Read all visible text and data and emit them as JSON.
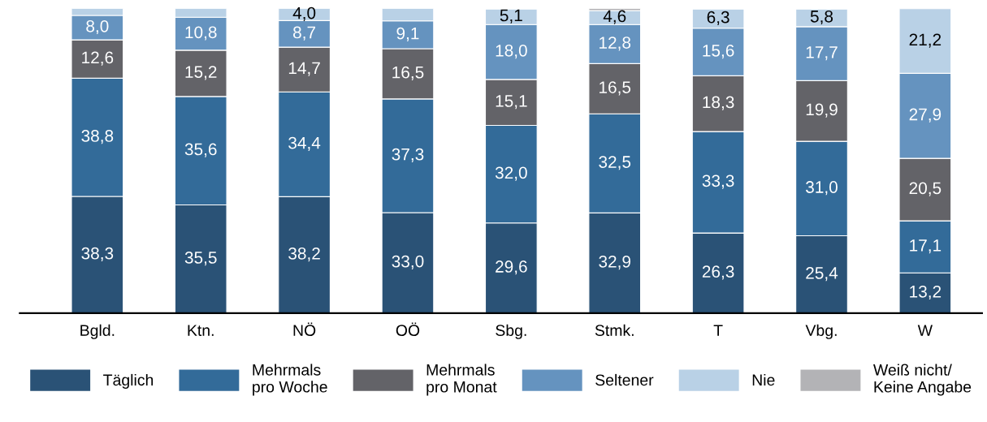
{
  "chart_data": {
    "type": "bar",
    "stacked": true,
    "categories": [
      "Bgld.",
      "Ktn.",
      "NÖ",
      "OÖ",
      "Sbg.",
      "Stmk.",
      "T",
      "Vbg.",
      "W"
    ],
    "series": [
      {
        "name": "Täglich",
        "color": "#2a5276",
        "values": [
          38.3,
          35.5,
          38.2,
          33.0,
          29.6,
          32.9,
          26.3,
          25.4,
          13.2
        ],
        "value_labels": [
          "38,3",
          "35,5",
          "38,2",
          "33,0",
          "29,6",
          "32,9",
          "26,3",
          "25,4",
          "13,2"
        ]
      },
      {
        "name": "Mehrmals\npro Woche",
        "color": "#336b99",
        "values": [
          38.8,
          35.6,
          34.4,
          37.3,
          32.0,
          32.5,
          33.3,
          31.0,
          17.1
        ],
        "value_labels": [
          "38,8",
          "35,6",
          "34,4",
          "37,3",
          "32,0",
          "32,5",
          "33,3",
          "31,0",
          "17,1"
        ]
      },
      {
        "name": "Mehrmals\npro Monat",
        "color": "#636368",
        "values": [
          12.6,
          15.2,
          14.7,
          16.5,
          15.1,
          16.5,
          18.3,
          19.9,
          20.5
        ],
        "value_labels": [
          "12,6",
          "15,2",
          "14,7",
          "16,5",
          "15,1",
          "16,5",
          "18,3",
          "19,9",
          "20,5"
        ]
      },
      {
        "name": "Seltener",
        "color": "#6593bf",
        "values": [
          8.0,
          10.8,
          8.7,
          9.1,
          18.0,
          12.8,
          15.6,
          17.7,
          27.9
        ],
        "value_labels": [
          "8,0",
          "10,8",
          "8,7",
          "9,1",
          "18,0",
          "12,8",
          "15,6",
          "17,7",
          "27,9"
        ]
      },
      {
        "name": "Nie",
        "color": "#b9d1e6",
        "values": [
          2.3,
          2.9,
          4.0,
          4.1,
          5.1,
          4.6,
          6.3,
          5.8,
          21.2
        ],
        "value_labels": [
          null,
          null,
          "4,0",
          null,
          "5,1",
          "4,6",
          "6,3",
          "5,8",
          "21,2"
        ]
      },
      {
        "name": "Weiß nicht/\nKeine Angabe",
        "color": "#b3b3b6",
        "values": [
          null,
          null,
          null,
          null,
          null,
          0.7,
          null,
          null,
          null
        ],
        "value_labels": [
          null,
          null,
          null,
          null,
          null,
          null,
          null,
          null,
          null
        ]
      }
    ],
    "ylim": [
      0,
      100
    ],
    "tick_labels": "x",
    "grid": false,
    "legend": "bottom"
  }
}
